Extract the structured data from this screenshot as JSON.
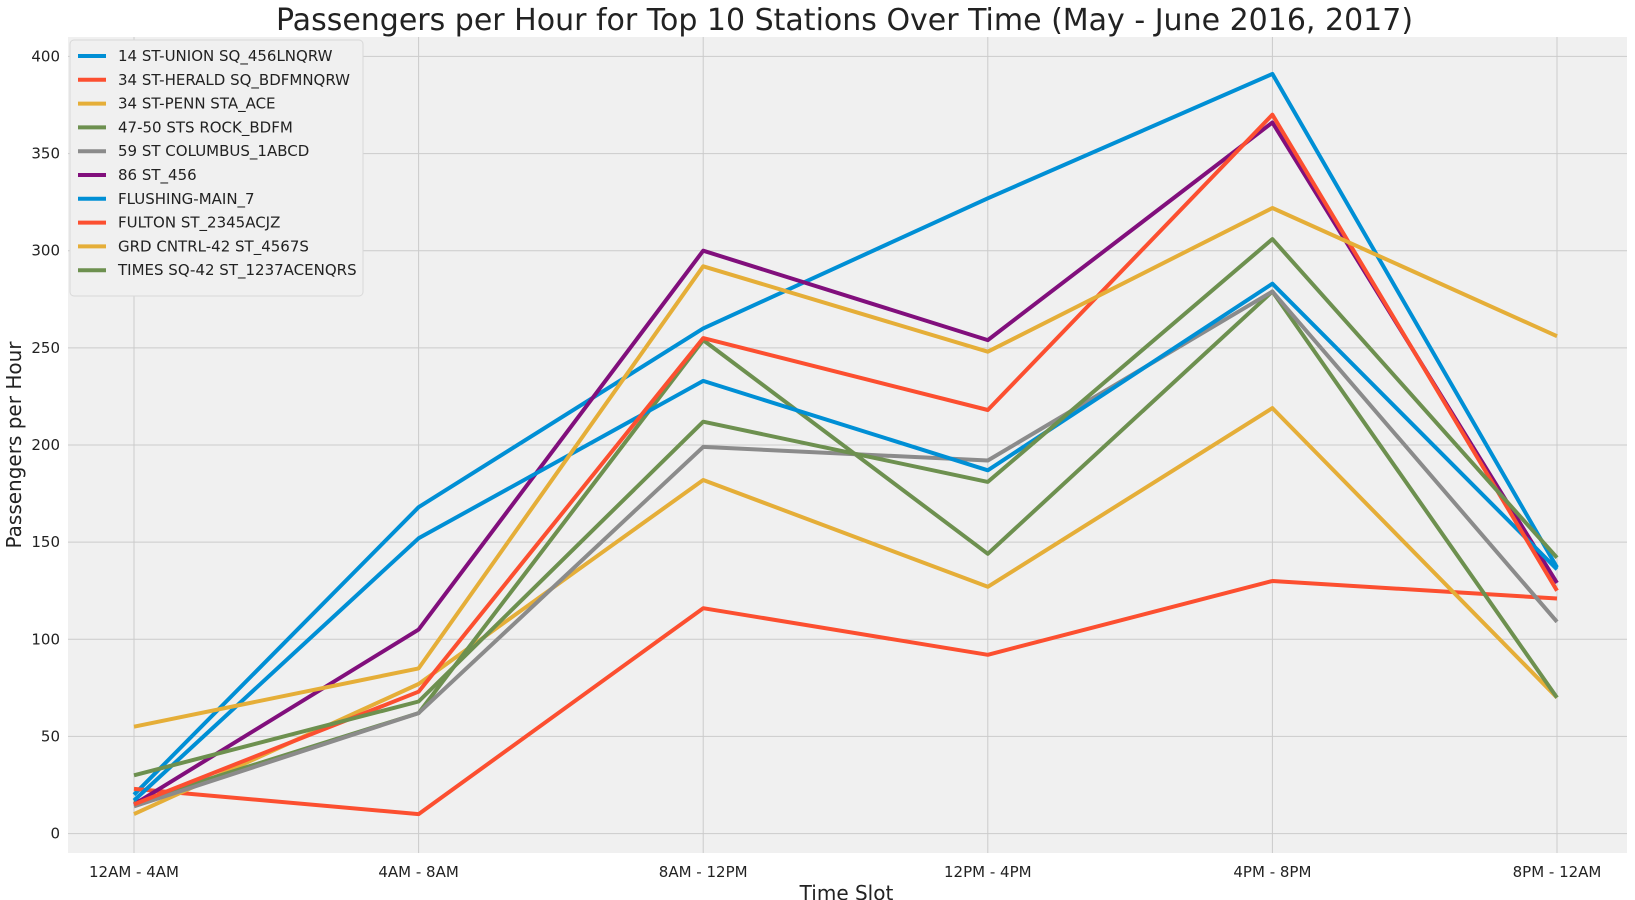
{
  "chart_data": {
    "type": "line",
    "title": "Passengers per Hour for Top 10 Stations Over Time (May - June 2016, 2017)",
    "xlabel": "Time Slot",
    "ylabel": "Passengers per Hour",
    "categories": [
      "12AM - 4AM",
      "4AM - 8AM",
      "8AM - 12PM",
      "12PM - 4PM",
      "4PM - 8PM",
      "8PM - 12AM"
    ],
    "ylim": [
      -10,
      410
    ],
    "yticks": [
      0,
      50,
      100,
      150,
      200,
      250,
      300,
      350,
      400
    ],
    "grid": true,
    "legend_position": "top-left",
    "series": [
      {
        "name": "14 ST-UNION SQ_456LNQRW",
        "color": "#008fd5",
        "values": [
          20,
          168,
          260,
          327,
          391,
          137
        ]
      },
      {
        "name": "34 ST-HERALD SQ_BDFMNQRW",
        "color": "#fc4f30",
        "values": [
          23,
          10,
          116,
          92,
          130,
          121
        ]
      },
      {
        "name": "34 ST-PENN STA_ACE",
        "color": "#e5ae38",
        "values": [
          10,
          77,
          182,
          127,
          219,
          70
        ]
      },
      {
        "name": "47-50 STS ROCK_BDFM",
        "color": "#6d904f",
        "values": [
          16,
          62,
          254,
          144,
          279,
          70
        ]
      },
      {
        "name": "59 ST COLUMBUS_1ABCD",
        "color": "#8b8b8b",
        "values": [
          14,
          62,
          199,
          192,
          279,
          109
        ]
      },
      {
        "name": "86 ST_456",
        "color": "#810f7c",
        "values": [
          15,
          105,
          300,
          254,
          366,
          129
        ]
      },
      {
        "name": "FLUSHING-MAIN_7",
        "color": "#008fd5",
        "values": [
          17,
          152,
          233,
          187,
          283,
          136
        ]
      },
      {
        "name": "FULTON ST_2345ACJZ",
        "color": "#fc4f30",
        "values": [
          15,
          73,
          255,
          218,
          370,
          125
        ]
      },
      {
        "name": "GRD CNTRL-42 ST_4567S",
        "color": "#e5ae38",
        "values": [
          55,
          85,
          292,
          248,
          322,
          256
        ]
      },
      {
        "name": "TIMES SQ-42 ST_1237ACENQRS",
        "color": "#6d904f",
        "values": [
          30,
          68,
          212,
          181,
          306,
          142
        ]
      }
    ]
  }
}
